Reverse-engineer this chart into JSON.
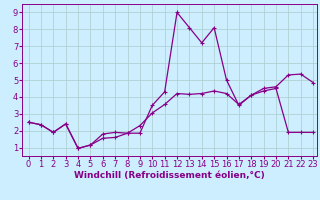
{
  "xlabel": "Windchill (Refroidissement éolien,°C)",
  "bg_color": "#cceeff",
  "grid_color": "#aacccc",
  "line_color": "#880088",
  "line1_x": [
    0,
    1,
    2,
    3,
    4,
    5,
    6,
    7,
    8,
    9,
    10,
    11,
    12,
    13,
    14,
    15,
    16,
    17,
    18,
    19,
    20,
    21,
    22,
    23
  ],
  "line1_y": [
    2.5,
    2.35,
    1.9,
    2.4,
    0.95,
    1.15,
    1.8,
    1.9,
    1.85,
    1.85,
    3.5,
    4.3,
    9.0,
    8.1,
    7.2,
    8.1,
    5.0,
    3.5,
    4.1,
    4.5,
    4.6,
    5.3,
    5.35,
    4.85
  ],
  "line2_x": [
    0,
    1,
    2,
    3,
    4,
    5,
    6,
    7,
    8,
    9,
    10,
    11,
    12,
    13,
    14,
    15,
    16,
    17,
    18,
    19,
    20,
    21,
    22,
    23
  ],
  "line2_y": [
    2.5,
    2.35,
    1.9,
    2.4,
    0.95,
    1.15,
    1.55,
    1.6,
    1.85,
    2.3,
    3.05,
    3.55,
    4.2,
    4.15,
    4.2,
    4.35,
    4.2,
    3.55,
    4.1,
    4.35,
    4.5,
    1.9,
    1.9,
    1.9
  ],
  "xlabel_fontsize": 6.5,
  "tick_fontsize": 6,
  "line_width": 0.9,
  "marker_size": 2.5,
  "xlim": [
    -0.5,
    23.3
  ],
  "ylim": [
    0.5,
    9.5
  ],
  "xticks": [
    0,
    1,
    2,
    3,
    4,
    5,
    6,
    7,
    8,
    9,
    10,
    11,
    12,
    13,
    14,
    15,
    16,
    17,
    18,
    19,
    20,
    21,
    22,
    23
  ],
  "yticks": [
    1,
    2,
    3,
    4,
    5,
    6,
    7,
    8,
    9
  ]
}
